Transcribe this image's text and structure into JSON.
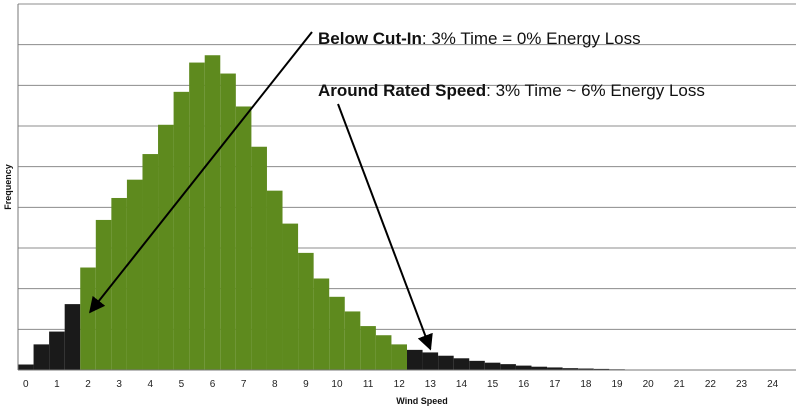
{
  "chart_data": {
    "type": "bar",
    "title": "",
    "xlabel": "Wind Speed",
    "ylabel": "Frequency",
    "x_ticks": [
      "0",
      "1",
      "2",
      "3",
      "4",
      "5",
      "6",
      "7",
      "8",
      "9",
      "10",
      "11",
      "12",
      "13",
      "14",
      "15",
      "16",
      "17",
      "18",
      "19",
      "20",
      "21",
      "22",
      "23",
      "24"
    ],
    "bin_width": 0.5,
    "x_range": [
      -0.25,
      24.75
    ],
    "ylim": [
      0,
      100
    ],
    "grid": true,
    "colors": {
      "below_cut_in": "#1a1a1a",
      "operating": "#5e8a1e",
      "above_rated": "#1a1a1a",
      "gridline": "#8c8c8c"
    },
    "series": [
      {
        "x": [
          0,
          0.5,
          1,
          1.5
        ],
        "values": [
          1.5,
          7,
          10.5,
          18
        ],
        "color_key": "below_cut_in"
      },
      {
        "x": [
          2,
          2.5,
          3,
          3.5,
          4,
          4.5,
          5,
          5.5,
          6,
          6.5,
          7,
          7.5,
          8,
          8.5,
          9,
          9.5,
          10,
          10.5,
          11,
          11.5,
          12
        ],
        "values": [
          28,
          41,
          47,
          52,
          59,
          67,
          76,
          84,
          86,
          81,
          72,
          61,
          49,
          40,
          32,
          25,
          20,
          16,
          12,
          9.5,
          7
        ],
        "color_key": "operating"
      },
      {
        "x": [
          12.5,
          13,
          13.5,
          14,
          14.5,
          15,
          15.5,
          16,
          16.5,
          17,
          17.5,
          18,
          18.5,
          19
        ],
        "values": [
          5.5,
          4.8,
          3.9,
          3.2,
          2.5,
          2.0,
          1.6,
          1.2,
          0.9,
          0.7,
          0.5,
          0.4,
          0.3,
          0.2
        ],
        "color_key": "above_rated"
      }
    ],
    "annotations": [
      {
        "bold": "Below Cut-In",
        "text": ": 3% Time  = 0% Energy Loss",
        "arrow_to": {
          "x": 2,
          "y": 18
        }
      },
      {
        "bold": "Around Rated Speed",
        "text": ": 3% Time ~ 6% Energy Loss",
        "arrow_to": {
          "x": 13,
          "y": 9
        }
      }
    ]
  }
}
